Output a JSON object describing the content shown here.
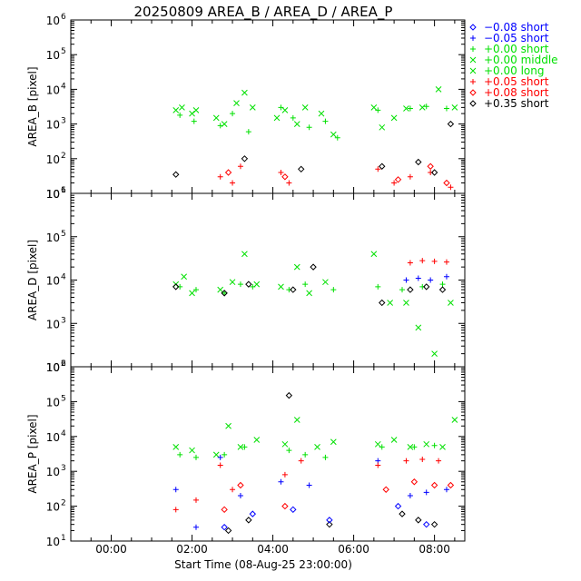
{
  "chart_data": {
    "title": "20250809 AREA_B / AREA_D / AREA_P",
    "xlabel": "Start Time (08-Aug-25 23:00:00)",
    "x_ticks": [
      "00:00",
      "02:00",
      "04:00",
      "06:00",
      "08:00"
    ],
    "x_range_hours": [
      -1.0,
      8.75
    ],
    "legend": {
      "placement": "top-right, outside plot",
      "entries": [
        {
          "label": "−0.08 short",
          "color": "#0000ff",
          "marker": "diamond"
        },
        {
          "label": "−0.05 short",
          "color": "#0000ff",
          "marker": "plus"
        },
        {
          "label": "+0.00 short",
          "color": "#00e000",
          "marker": "plus"
        },
        {
          "label": "+0.00 middle",
          "color": "#00e000",
          "marker": "cross"
        },
        {
          "label": "+0.00 long",
          "color": "#00e000",
          "marker": "cross"
        },
        {
          "label": "+0.05 short",
          "color": "#ff0000",
          "marker": "plus"
        },
        {
          "label": "+0.08 short",
          "color": "#ff0000",
          "marker": "diamond"
        },
        {
          "label": "+0.35 short",
          "color": "#000000",
          "marker": "diamond"
        }
      ]
    },
    "panels": [
      {
        "ylabel": "AREA_B [pixel]",
        "type": "scatter",
        "y_scale": "log",
        "ylim": [
          10,
          1000000
        ],
        "y_ticks": [
          {
            "v": 1,
            "e": "1"
          },
          {
            "v": 2,
            "e": "2"
          },
          {
            "v": 3,
            "e": "3"
          },
          {
            "v": 4,
            "e": "4"
          },
          {
            "v": 5,
            "e": "5"
          },
          {
            "v": 6,
            "e": "6"
          }
        ]
      },
      {
        "ylabel": "AREA_D [pixel]",
        "type": "scatter",
        "y_scale": "log",
        "ylim": [
          100,
          1000000
        ],
        "y_ticks": [
          {
            "v": 2,
            "e": "2"
          },
          {
            "v": 3,
            "e": "3"
          },
          {
            "v": 4,
            "e": "4"
          },
          {
            "v": 5,
            "e": "5"
          },
          {
            "v": 6,
            "e": "6"
          }
        ]
      },
      {
        "ylabel": "AREA_P [pixel]",
        "type": "scatter",
        "y_scale": "log",
        "ylim": [
          10,
          1000000
        ],
        "y_ticks": [
          {
            "v": 1,
            "e": "1"
          },
          {
            "v": 2,
            "e": "2"
          },
          {
            "v": 3,
            "e": "3"
          },
          {
            "v": 4,
            "e": "4"
          },
          {
            "v": 5,
            "e": "5"
          },
          {
            "v": 6,
            "e": "6"
          }
        ]
      }
    ],
    "series": [
      {
        "panel": 0,
        "name": "+0.00 middle",
        "color": "#00e000",
        "marker": "cross",
        "x": [
          1.6,
          1.75,
          2.0,
          2.1,
          2.6,
          2.8,
          3.1,
          3.3,
          3.5,
          4.1,
          4.3,
          4.6,
          4.8,
          5.2,
          5.5,
          6.5,
          6.7,
          7.0,
          7.3,
          7.7,
          8.1,
          8.5
        ],
        "y": [
          2500,
          3000,
          2000,
          2500,
          1500,
          1000,
          4000,
          8000,
          3000,
          1500,
          2500,
          1000,
          3000,
          2000,
          500,
          3000,
          800,
          1500,
          2800,
          3000,
          10000,
          3000
        ]
      },
      {
        "panel": 0,
        "name": "+0.00 short",
        "color": "#00e000",
        "marker": "plus",
        "x": [
          1.7,
          2.05,
          2.7,
          3.0,
          3.4,
          4.2,
          4.5,
          4.9,
          5.3,
          5.6,
          6.6,
          7.4,
          7.8,
          8.3
        ],
        "y": [
          1800,
          1200,
          900,
          2000,
          600,
          3000,
          1500,
          800,
          1200,
          400,
          2500,
          2800,
          3200,
          2800
        ]
      },
      {
        "panel": 0,
        "name": "+0.05 short",
        "color": "#ff0000",
        "marker": "plus",
        "x": [
          2.7,
          3.0,
          3.2,
          4.2,
          4.4,
          6.6,
          7.0,
          7.4,
          7.9,
          8.4
        ],
        "y": [
          30,
          20,
          60,
          40,
          20,
          50,
          20,
          30,
          40,
          15
        ]
      },
      {
        "panel": 0,
        "name": "+0.08 short",
        "color": "#ff0000",
        "marker": "diamond",
        "x": [
          2.9,
          4.3,
          7.1,
          7.9,
          8.3
        ],
        "y": [
          40,
          30,
          25,
          60,
          20
        ]
      },
      {
        "panel": 0,
        "name": "+0.35 short",
        "color": "#000000",
        "marker": "diamond",
        "x": [
          1.6,
          3.3,
          4.7,
          6.7,
          7.6,
          8.0,
          8.4
        ],
        "y": [
          35,
          100,
          50,
          60,
          80,
          40,
          1000
        ]
      },
      {
        "panel": 1,
        "name": "+0.00 middle",
        "color": "#00e000",
        "marker": "cross",
        "x": [
          1.6,
          1.8,
          2.0,
          2.7,
          3.0,
          3.3,
          3.6,
          4.2,
          4.6,
          4.9,
          5.3,
          6.5,
          6.9,
          7.3,
          7.6,
          8.0,
          8.4
        ],
        "y": [
          8000,
          12000,
          5000,
          6000,
          9000,
          40000,
          8000,
          7000,
          20000,
          5000,
          9000,
          40000,
          3000,
          3000,
          800,
          200,
          3000
        ]
      },
      {
        "panel": 1,
        "name": "+0.00 short",
        "color": "#00e000",
        "marker": "plus",
        "x": [
          1.7,
          2.1,
          2.8,
          3.2,
          3.5,
          4.4,
          4.8,
          5.5,
          6.6,
          7.2,
          7.7,
          8.2
        ],
        "y": [
          7000,
          6000,
          5000,
          8000,
          7000,
          6000,
          8000,
          6000,
          7000,
          6000,
          7000,
          8000
        ]
      },
      {
        "panel": 1,
        "name": "+0.05 short",
        "color": "#ff0000",
        "marker": "plus",
        "x": [
          7.4,
          7.7,
          8.0,
          8.3
        ],
        "y": [
          25000,
          28000,
          27000,
          26000
        ]
      },
      {
        "panel": 1,
        "name": "−0.05 short",
        "color": "#0000ff",
        "marker": "plus",
        "x": [
          7.3,
          7.6,
          7.9,
          8.3
        ],
        "y": [
          10000,
          11000,
          10000,
          12000
        ]
      },
      {
        "panel": 1,
        "name": "+0.35 short",
        "color": "#000000",
        "marker": "diamond",
        "x": [
          1.6,
          2.8,
          3.4,
          4.5,
          5.0,
          6.7,
          7.4,
          7.8,
          8.2
        ],
        "y": [
          7000,
          5000,
          8000,
          6000,
          20000,
          3000,
          6000,
          7000,
          6000
        ]
      },
      {
        "panel": 2,
        "name": "+0.00 middle",
        "color": "#00e000",
        "marker": "cross",
        "x": [
          1.6,
          2.0,
          2.6,
          2.9,
          3.2,
          3.6,
          4.3,
          4.6,
          5.1,
          5.5,
          6.6,
          7.0,
          7.4,
          7.8,
          8.2,
          8.5
        ],
        "y": [
          5000,
          4000,
          3000,
          20000,
          5000,
          8000,
          6000,
          30000,
          5000,
          7000,
          6000,
          8000,
          5000,
          6000,
          5000,
          30000
        ]
      },
      {
        "panel": 2,
        "name": "+0.00 short",
        "color": "#00e000",
        "marker": "plus",
        "x": [
          1.7,
          2.1,
          2.8,
          3.3,
          4.4,
          4.8,
          5.3,
          6.7,
          7.5,
          8.0
        ],
        "y": [
          3000,
          2500,
          3000,
          5000,
          4000,
          3000,
          2500,
          5000,
          5000,
          5500
        ]
      },
      {
        "panel": 2,
        "name": "−0.05 short",
        "color": "#0000ff",
        "marker": "plus",
        "x": [
          1.6,
          2.1,
          2.7,
          3.2,
          4.2,
          4.9,
          6.6,
          7.4,
          7.8,
          8.3
        ],
        "y": [
          300,
          25,
          2500,
          200,
          500,
          400,
          2000,
          200,
          250,
          300
        ]
      },
      {
        "panel": 2,
        "name": "+0.05 short",
        "color": "#ff0000",
        "marker": "plus",
        "x": [
          1.6,
          2.1,
          2.7,
          3.0,
          4.3,
          4.7,
          6.6,
          7.3,
          7.7,
          8.1
        ],
        "y": [
          80,
          150,
          1500,
          300,
          800,
          2000,
          1500,
          2000,
          2200,
          2000
        ]
      },
      {
        "panel": 2,
        "name": "+0.08 short",
        "color": "#ff0000",
        "marker": "diamond",
        "x": [
          2.8,
          3.2,
          4.3,
          6.8,
          7.5,
          8.0,
          8.4
        ],
        "y": [
          80,
          400,
          100,
          300,
          500,
          400,
          400
        ]
      },
      {
        "panel": 2,
        "name": "+0.35 short",
        "color": "#000000",
        "marker": "diamond",
        "x": [
          2.9,
          3.4,
          4.4,
          5.4,
          7.2,
          7.6,
          8.0
        ],
        "y": [
          20,
          40,
          150000,
          30,
          60,
          40,
          30
        ]
      },
      {
        "panel": 2,
        "name": "−0.08 short",
        "color": "#0000ff",
        "marker": "diamond",
        "x": [
          2.8,
          3.5,
          4.5,
          5.4,
          7.1,
          7.8
        ],
        "y": [
          25,
          60,
          80,
          40,
          100,
          30
        ]
      }
    ]
  }
}
